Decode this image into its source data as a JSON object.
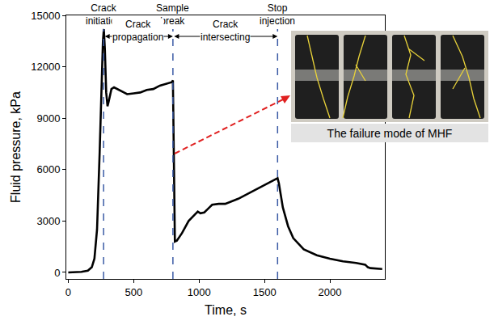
{
  "chart_data": {
    "type": "line",
    "x_label": "Time, s",
    "y_label": "Fluid pressure, kPa",
    "x": [
      0,
      100,
      150,
      180,
      200,
      220,
      240,
      255,
      265,
      272,
      280,
      290,
      300,
      310,
      330,
      350,
      400,
      450,
      500,
      550,
      600,
      650,
      700,
      750,
      790,
      800,
      805,
      808,
      810,
      815,
      830,
      870,
      920,
      970,
      990,
      1010,
      1040,
      1080,
      1100,
      1150,
      1200,
      1300,
      1400,
      1500,
      1580,
      1600,
      1610,
      1640,
      1680,
      1720,
      1800,
      1900,
      2000,
      2100,
      2200,
      2270,
      2290,
      2310,
      2400
    ],
    "values": [
      0,
      30,
      100,
      300,
      800,
      2500,
      7000,
      11000,
      13500,
      14200,
      13000,
      10500,
      9700,
      10000,
      10700,
      10800,
      10600,
      10400,
      10450,
      10500,
      10650,
      10700,
      10900,
      11000,
      11100,
      11200,
      8000,
      4000,
      2500,
      1800,
      1850,
      2300,
      3000,
      3400,
      3550,
      3450,
      3500,
      3800,
      3950,
      4000,
      4000,
      4300,
      4700,
      5100,
      5400,
      5500,
      5200,
      3800,
      2700,
      2000,
      1350,
      1000,
      800,
      650,
      550,
      450,
      300,
      250,
      200
    ],
    "color": "#000000",
    "xlim": [
      -15,
      2420
    ],
    "xticks": [
      0,
      500,
      1000,
      1500,
      2000
    ],
    "ylim": [
      -380,
      15000
    ],
    "yticks": [
      0,
      3000,
      6000,
      9000,
      12000,
      15000
    ],
    "grid": false,
    "annotations": [
      {
        "x": 270,
        "text": "Crack initiation"
      },
      {
        "x": 800,
        "text": "Sample break"
      },
      {
        "x": 1600,
        "text": "Stop injection"
      }
    ],
    "spans": [
      {
        "x0": 270,
        "x1": 800,
        "text": "Crack propagation"
      },
      {
        "x0": 800,
        "x1": 1600,
        "text": "Crack intersecting"
      }
    ],
    "inset_caption": "The failure mode of MHF"
  }
}
